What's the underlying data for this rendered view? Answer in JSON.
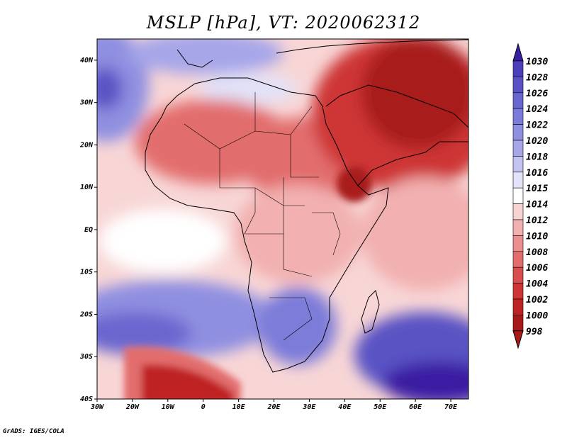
{
  "title": "MSLP [hPa], VT: 2020062312",
  "footer": "GrADS: IGES/COLA",
  "map": {
    "variable": "MSLP",
    "units": "hPa",
    "valid_time": "2020062312",
    "lon_range": [
      -30,
      75
    ],
    "lat_range": [
      -40,
      45
    ],
    "lon_ticks": [
      "30W",
      "20W",
      "10W",
      "0",
      "10E",
      "20E",
      "30E",
      "40E",
      "50E",
      "60E",
      "70E"
    ],
    "lat_ticks": [
      "40N",
      "30N",
      "20N",
      "10N",
      "EQ",
      "10S",
      "20S",
      "30S",
      "40S"
    ]
  },
  "colorbar": {
    "levels": [
      "1030",
      "1028",
      "1026",
      "1024",
      "1022",
      "1020",
      "1018",
      "1016",
      "1015",
      "1014",
      "1012",
      "1010",
      "1008",
      "1006",
      "1004",
      "1002",
      "1000",
      "998"
    ],
    "colors": [
      "#3a1fa3",
      "#4a3fb8",
      "#5a52c4",
      "#6a66cf",
      "#7b7bd9",
      "#8f8fe1",
      "#a6a6e9",
      "#c3c3f1",
      "#e2e2f8",
      "#ffffff",
      "#f8d3d3",
      "#f2b0b0",
      "#eb8e8e",
      "#e26d6d",
      "#d84e4e",
      "#ce3535",
      "#bf2424",
      "#a81a1a"
    ]
  }
}
